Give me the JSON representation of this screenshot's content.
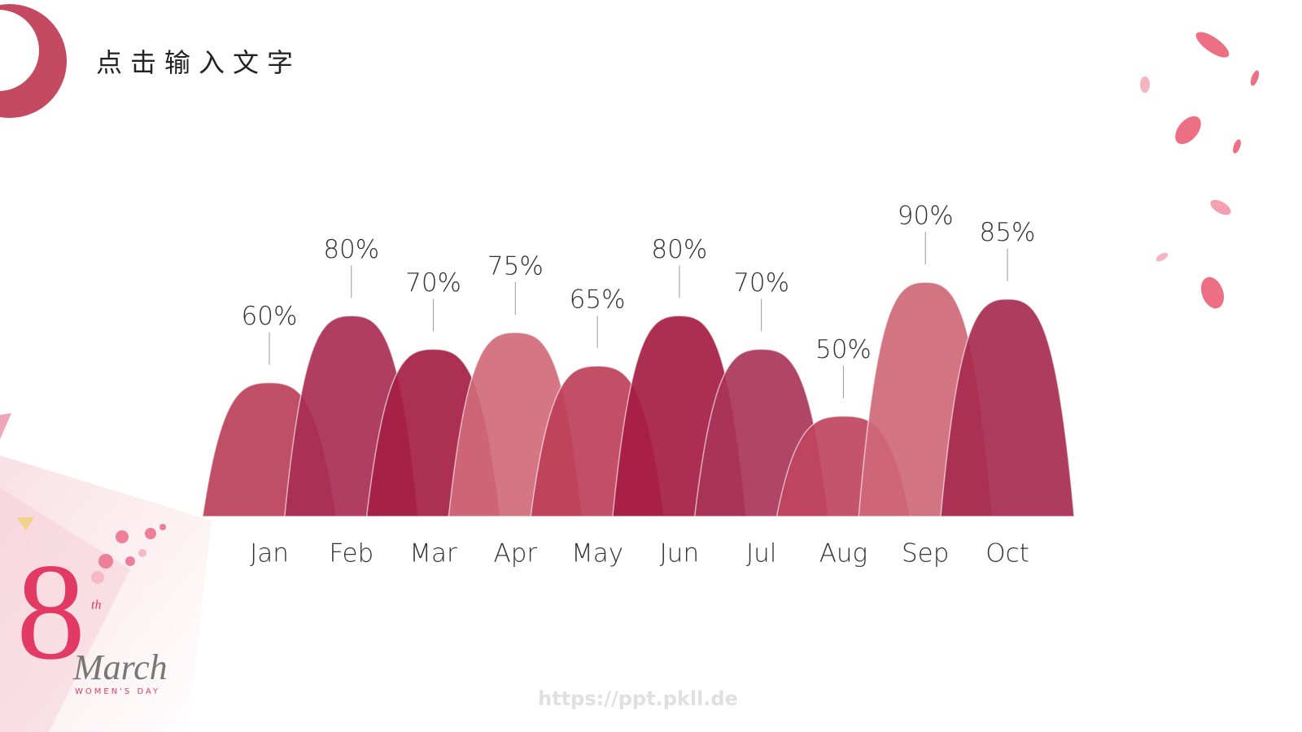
{
  "chart_data": {
    "type": "mountain",
    "title": "点击输入文字",
    "categories": [
      "Jan",
      "Feb",
      "Mar",
      "Apr",
      "May",
      "Jun",
      "Jul",
      "Aug",
      "Sep",
      "Oct"
    ],
    "values": [
      60,
      80,
      70,
      75,
      65,
      80,
      70,
      50,
      90,
      85
    ],
    "value_labels": [
      "60%",
      "80%",
      "70%",
      "75%",
      "65%",
      "80%",
      "70%",
      "50%",
      "90%",
      "85%"
    ],
    "colors": [
      "#bb4058",
      "#a92e55",
      "#a51e45",
      "#d06a7a",
      "#bd4058",
      "#a61c44",
      "#a9355a",
      "#bf4460",
      "#cf6878",
      "#a72b50"
    ],
    "ylim": [
      20,
      100
    ]
  },
  "decoration": {
    "numeral": "8",
    "suffix": "th",
    "script": "March",
    "caption": "WOMEN'S DAY"
  },
  "watermark": "https://ppt.pkll.de"
}
